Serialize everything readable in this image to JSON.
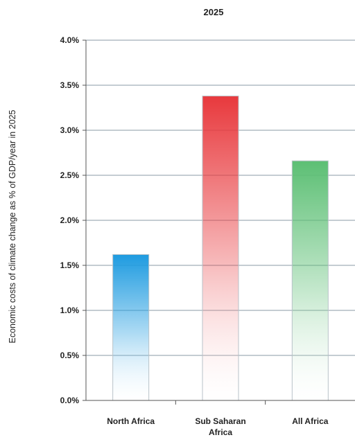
{
  "chart_data": {
    "type": "bar",
    "title": "2025",
    "xlabel": "",
    "ylabel": "Economic costs of climate change as % of GDP/year in 2025",
    "categories": [
      "North Africa",
      "Sub Saharan Africa",
      "All Africa"
    ],
    "category_lines": [
      [
        "North Africa"
      ],
      [
        "Sub Saharan",
        "Africa"
      ],
      [
        "All Africa"
      ]
    ],
    "values": [
      1.62,
      3.38,
      2.66
    ],
    "ylim": [
      0,
      4.0
    ],
    "yticks": [
      0,
      0.5,
      1.0,
      1.5,
      2.0,
      2.5,
      3.0,
      3.5,
      4.0
    ],
    "ytick_labels": [
      "0.0%",
      "0.5%",
      "1.0%",
      "1.5%",
      "2.0%",
      "2.5%",
      "3.0%",
      "3.5%",
      "4.0%"
    ],
    "grid": true,
    "legend": "none",
    "bar_colors": [
      "#1e9be0",
      "#e8393d",
      "#5cbf74"
    ]
  }
}
